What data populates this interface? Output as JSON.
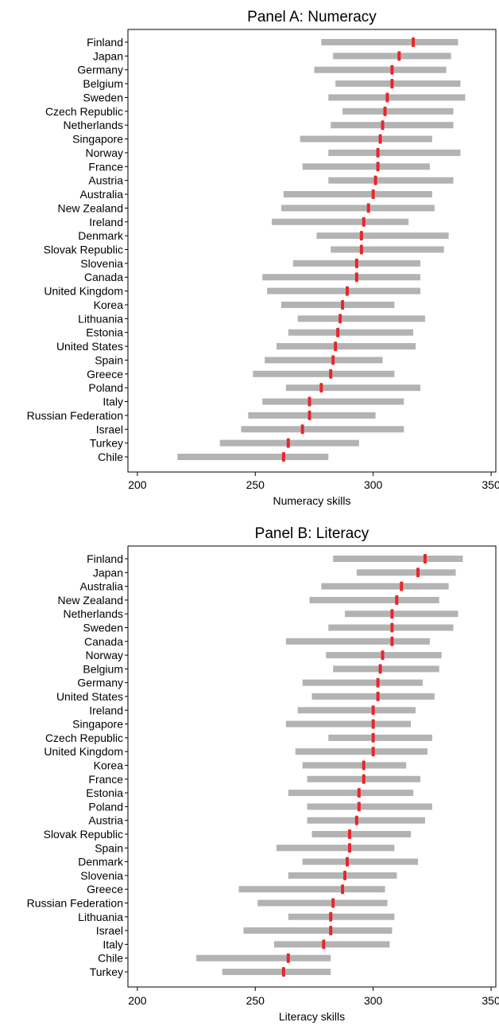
{
  "chart_data": [
    {
      "type": "range-dot",
      "title": "Panel A: Numeracy",
      "xlabel": "Numeracy skills",
      "ylabel": "",
      "xlim": [
        196,
        352
      ],
      "xticks": [
        "200",
        "250",
        "300",
        "350"
      ],
      "grid": false,
      "bar_color": "#b3b3b3",
      "marker_color": "#e8262b",
      "categories": [
        "Finland",
        "Japan",
        "Germany",
        "Belgium",
        "Sweden",
        "Czech Republic",
        "Netherlands",
        "Singapore",
        "Norway",
        "France",
        "Austria",
        "Australia",
        "New Zealand",
        "Ireland",
        "Denmark",
        "Slovak Republic",
        "Slovenia",
        "Canada",
        "United Kingdom",
        "Korea",
        "Lithuania",
        "Estonia",
        "United States",
        "Spain",
        "Greece",
        "Poland",
        "Italy",
        "Russian Federation",
        "Israel",
        "Turkey",
        "Chile"
      ],
      "low": [
        278,
        283,
        275,
        284,
        281,
        287,
        282,
        269,
        281,
        270,
        281,
        262,
        261,
        257,
        276,
        282,
        266,
        253,
        255,
        261,
        268,
        264,
        259,
        254,
        249,
        263,
        253,
        247,
        244,
        235,
        217
      ],
      "high": [
        336,
        333,
        331,
        337,
        339,
        334,
        334,
        325,
        337,
        324,
        334,
        325,
        326,
        315,
        332,
        330,
        320,
        320,
        320,
        309,
        322,
        317,
        318,
        304,
        309,
        320,
        313,
        301,
        313,
        294,
        281
      ],
      "mean": [
        317,
        311,
        308,
        308,
        306,
        305,
        304,
        303,
        302,
        302,
        301,
        300,
        298,
        296,
        295,
        295,
        293,
        293,
        289,
        287,
        286,
        285,
        284,
        283,
        282,
        278,
        273,
        273,
        270,
        264,
        262
      ]
    },
    {
      "type": "range-dot",
      "title": "Panel B: Literacy",
      "xlabel": "Literacy skills",
      "ylabel": "",
      "xlim": [
        196,
        352
      ],
      "xticks": [
        "200",
        "250",
        "300",
        "350"
      ],
      "grid": false,
      "bar_color": "#b3b3b3",
      "marker_color": "#e8262b",
      "categories": [
        "Finland",
        "Japan",
        "Australia",
        "New Zealand",
        "Netherlands",
        "Sweden",
        "Canada",
        "Norway",
        "Belgium",
        "Germany",
        "United States",
        "Ireland",
        "Singapore",
        "Czech Republic",
        "United Kingdom",
        "Korea",
        "France",
        "Estonia",
        "Poland",
        "Austria",
        "Slovak Republic",
        "Spain",
        "Denmark",
        "Slovenia",
        "Greece",
        "Russian Federation",
        "Lithuania",
        "Israel",
        "Italy",
        "Chile",
        "Turkey"
      ],
      "low": [
        283,
        293,
        278,
        273,
        288,
        281,
        263,
        280,
        283,
        270,
        274,
        268,
        263,
        281,
        267,
        270,
        272,
        264,
        272,
        272,
        274,
        259,
        270,
        264,
        243,
        251,
        264,
        245,
        258,
        225,
        236
      ],
      "high": [
        338,
        335,
        332,
        328,
        336,
        334,
        324,
        329,
        328,
        321,
        326,
        318,
        316,
        325,
        323,
        314,
        320,
        317,
        325,
        322,
        316,
        309,
        319,
        310,
        305,
        306,
        309,
        308,
        307,
        282,
        282
      ],
      "mean": [
        322,
        319,
        312,
        310,
        308,
        308,
        308,
        304,
        303,
        302,
        302,
        300,
        300,
        300,
        300,
        296,
        296,
        294,
        294,
        293,
        290,
        290,
        289,
        288,
        287,
        283,
        282,
        282,
        279,
        264,
        262
      ]
    }
  ]
}
